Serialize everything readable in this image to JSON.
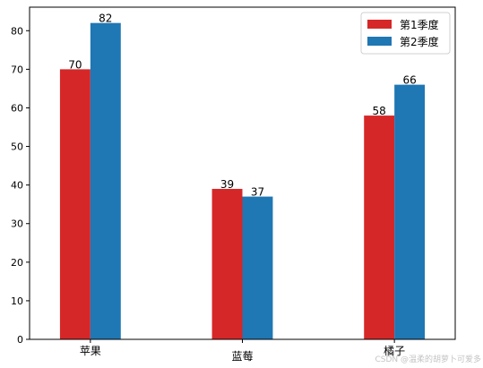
{
  "chart_data": {
    "type": "bar",
    "categories": [
      "苹果",
      "蓝莓",
      "橘子"
    ],
    "series": [
      {
        "name": "第1季度",
        "values": [
          70,
          39,
          58
        ],
        "color": "#d62728"
      },
      {
        "name": "第2季度",
        "values": [
          82,
          37,
          66
        ],
        "color": "#1f77b4"
      }
    ],
    "ylim": [
      0,
      86.1
    ],
    "yticks": [
      0,
      10,
      20,
      30,
      40,
      50,
      60,
      70,
      80
    ],
    "data_labels": true,
    "grid": false,
    "legend": "top-right",
    "title": "",
    "xlabel": "",
    "ylabel": ""
  },
  "watermark": "CSDN @温柔的胡萝卜可爱多"
}
